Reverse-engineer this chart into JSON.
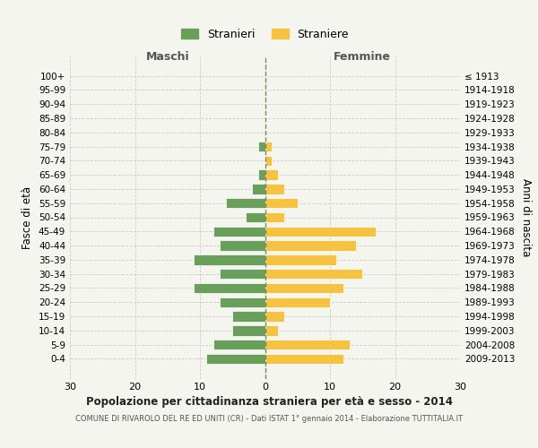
{
  "age_groups": [
    "100+",
    "95-99",
    "90-94",
    "85-89",
    "80-84",
    "75-79",
    "70-74",
    "65-69",
    "60-64",
    "55-59",
    "50-54",
    "45-49",
    "40-44",
    "35-39",
    "30-34",
    "25-29",
    "20-24",
    "15-19",
    "10-14",
    "5-9",
    "0-4"
  ],
  "birth_years": [
    "≤ 1913",
    "1914-1918",
    "1919-1923",
    "1924-1928",
    "1929-1933",
    "1934-1938",
    "1939-1943",
    "1944-1948",
    "1949-1953",
    "1954-1958",
    "1959-1963",
    "1964-1968",
    "1969-1973",
    "1974-1978",
    "1979-1983",
    "1984-1988",
    "1989-1993",
    "1994-1998",
    "1999-2003",
    "2004-2008",
    "2009-2013"
  ],
  "maschi": [
    0,
    0,
    0,
    0,
    0,
    1,
    0,
    1,
    2,
    6,
    3,
    8,
    7,
    11,
    7,
    11,
    7,
    5,
    5,
    8,
    9
  ],
  "femmine": [
    0,
    0,
    0,
    0,
    0,
    1,
    1,
    2,
    3,
    5,
    3,
    17,
    14,
    11,
    15,
    12,
    10,
    3,
    2,
    13,
    12
  ],
  "maschi_color": "#6a9f5b",
  "femmine_color": "#f5c242",
  "background_color": "#f5f5f0",
  "grid_color": "#cccccc",
  "title": "Popolazione per cittadinanza straniera per età e sesso - 2014",
  "subtitle": "COMUNE DI RIVAROLO DEL RE ED UNITI (CR) - Dati ISTAT 1° gennaio 2014 - Elaborazione TUTTITALIA.IT",
  "xlabel_left": "Maschi",
  "xlabel_right": "Femmine",
  "ylabel_left": "Fasce di età",
  "ylabel_right": "Anni di nascita",
  "legend_maschi": "Stranieri",
  "legend_femmine": "Straniere",
  "xlim": 30,
  "dashed_line_color": "#888855"
}
